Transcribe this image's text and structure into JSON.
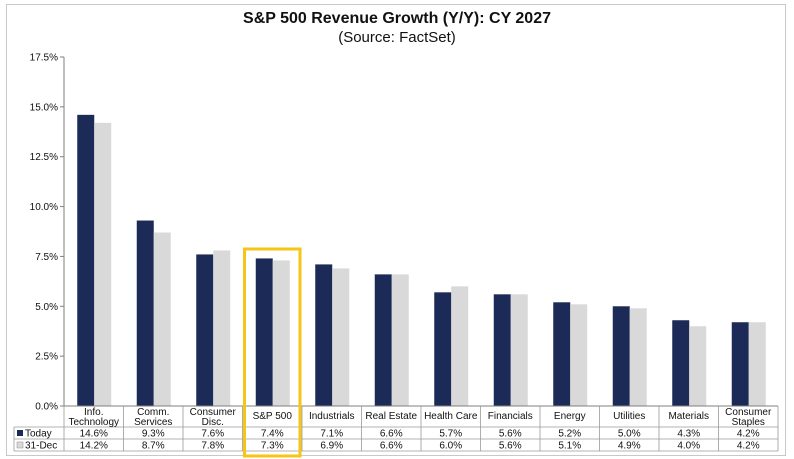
{
  "chart_data": {
    "type": "bar",
    "title": "S&P 500 Revenue Growth (Y/Y): CY 2027",
    "subtitle": "(Source: FactSet)",
    "categories": [
      [
        "Info.",
        "Technology"
      ],
      [
        "Comm.",
        "Services"
      ],
      [
        "Consumer",
        "Disc."
      ],
      [
        "S&P 500"
      ],
      [
        "Industrials"
      ],
      [
        "Real Estate"
      ],
      [
        "Health Care"
      ],
      [
        "Financials"
      ],
      [
        "Energy"
      ],
      [
        "Utilities"
      ],
      [
        "Materials"
      ],
      [
        "Consumer",
        "Staples"
      ]
    ],
    "series": [
      {
        "name": "Today",
        "color": "#1b2a56",
        "values": [
          14.6,
          9.3,
          7.6,
          7.4,
          7.1,
          6.6,
          5.7,
          5.6,
          5.2,
          5.0,
          4.3,
          4.2
        ],
        "labels": [
          "14.6%",
          "9.3%",
          "7.6%",
          "7.4%",
          "7.1%",
          "6.6%",
          "5.7%",
          "5.6%",
          "5.2%",
          "5.0%",
          "4.3%",
          "4.2%"
        ]
      },
      {
        "name": "31-Dec",
        "color": "#d9d9d9",
        "values": [
          14.2,
          8.7,
          7.8,
          7.3,
          6.9,
          6.6,
          6.0,
          5.6,
          5.1,
          4.9,
          4.0,
          4.2
        ],
        "labels": [
          "14.2%",
          "8.7%",
          "7.8%",
          "7.3%",
          "6.9%",
          "6.6%",
          "6.0%",
          "5.6%",
          "5.1%",
          "4.9%",
          "4.0%",
          "4.2%"
        ]
      }
    ],
    "ylim": [
      0,
      17.5
    ],
    "yticks": [
      "0.0%",
      "2.5%",
      "5.0%",
      "7.5%",
      "10.0%",
      "12.5%",
      "15.0%",
      "17.5%"
    ],
    "grid": false,
    "legend": "data-table",
    "highlight": {
      "category_index": 3,
      "color": "#f5c518"
    }
  }
}
